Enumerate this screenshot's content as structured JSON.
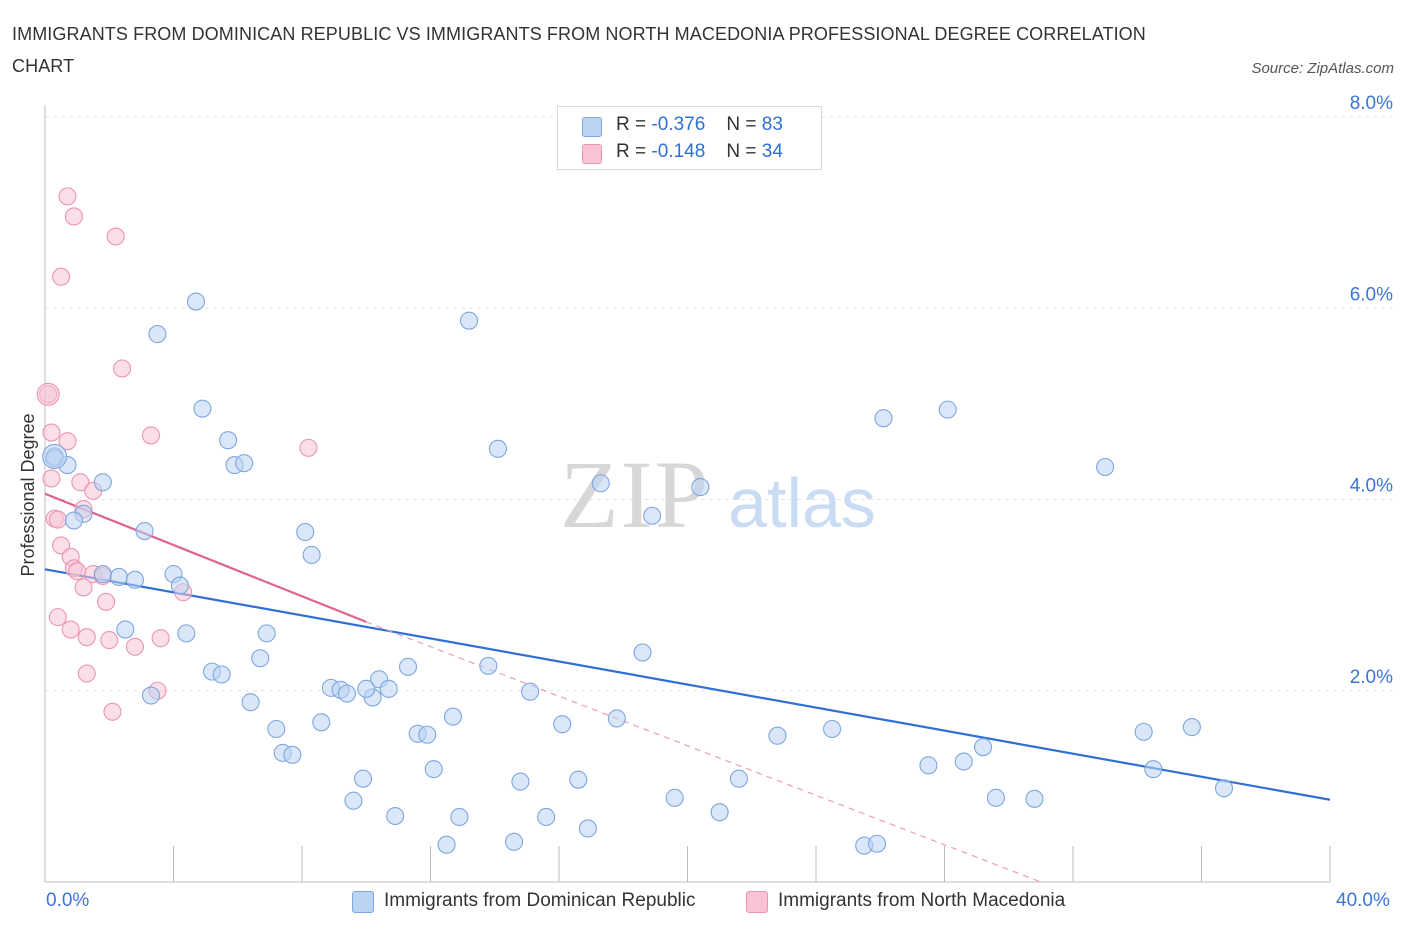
{
  "title": "IMMIGRANTS FROM DOMINICAN REPUBLIC VS IMMIGRANTS FROM NORTH MACEDONIA PROFESSIONAL DEGREE CORRELATION CHART",
  "source": "Source: ZipAtlas.com",
  "watermark": {
    "zip": "ZIP",
    "atlas": "atlas"
  },
  "legend": {
    "r_label": "R =",
    "n_label": "N =",
    "entries": [
      {
        "r": "-0.376",
        "n": "83",
        "color": "#a9c8f2"
      },
      {
        "r": "-0.148",
        "n": "34",
        "color": "#f6b8cb"
      }
    ]
  },
  "x_axis": {
    "left_label": "0.0%",
    "right_label": "40.0%"
  },
  "colors": {
    "blue": "#5b8fd9",
    "blue_fill": "#bcd4f3",
    "pink": "#e7729b",
    "pink_fill": "#f8c4d4",
    "blue_line": "#2f6fd6",
    "pink_line": "#e0608e",
    "tick_text": "#3a76d6"
  },
  "chart_data": {
    "type": "scatter",
    "title": "IMMIGRANTS FROM DOMINICAN REPUBLIC VS IMMIGRANTS FROM NORTH MACEDONIA PROFESSIONAL DEGREE CORRELATION CHART",
    "xlabel": "",
    "ylabel": "Professional Degree",
    "xlim": [
      0,
      40
    ],
    "ylim": [
      0,
      8
    ],
    "y_ticks": [
      {
        "value": 2,
        "label": "2.0%"
      },
      {
        "value": 4,
        "label": "4.0%"
      },
      {
        "value": 6,
        "label": "6.0%"
      },
      {
        "value": 8,
        "label": "8.0%"
      }
    ],
    "grid": true,
    "legend_position": "top-center",
    "series": [
      {
        "name": "Immigrants from Dominican Republic",
        "color": "#5b8fd9",
        "trend": {
          "x0": 0,
          "y0": 3.27,
          "x1": 40,
          "y1": 0.86
        },
        "points": [
          [
            0.3,
            4.45
          ],
          [
            0.3,
            4.43
          ],
          [
            0.7,
            4.36
          ],
          [
            1.8,
            4.18
          ],
          [
            1.2,
            3.85
          ],
          [
            0.9,
            3.78
          ],
          [
            1.8,
            3.22
          ],
          [
            2.3,
            3.19
          ],
          [
            2.8,
            3.16
          ],
          [
            3.1,
            3.67
          ],
          [
            4.0,
            3.22
          ],
          [
            4.2,
            3.1
          ],
          [
            2.5,
            2.64
          ],
          [
            4.4,
            2.6
          ],
          [
            3.3,
            1.95
          ],
          [
            3.5,
            5.73
          ],
          [
            4.7,
            6.07
          ],
          [
            4.9,
            4.95
          ],
          [
            5.7,
            4.62
          ],
          [
            5.9,
            4.36
          ],
          [
            6.2,
            4.38
          ],
          [
            5.2,
            2.2
          ],
          [
            5.5,
            2.17
          ],
          [
            6.4,
            1.88
          ],
          [
            6.7,
            2.34
          ],
          [
            6.9,
            2.6
          ],
          [
            7.2,
            1.6
          ],
          [
            7.4,
            1.35
          ],
          [
            7.7,
            1.33
          ],
          [
            8.1,
            3.66
          ],
          [
            8.3,
            3.42
          ],
          [
            8.6,
            1.67
          ],
          [
            8.9,
            2.03
          ],
          [
            9.2,
            2.01
          ],
          [
            9.6,
            0.85
          ],
          [
            9.9,
            1.08
          ],
          [
            10.2,
            1.93
          ],
          [
            10.4,
            2.12
          ],
          [
            10.7,
            2.02
          ],
          [
            10.9,
            0.69
          ],
          [
            11.3,
            2.25
          ],
          [
            11.6,
            1.55
          ],
          [
            11.9,
            1.54
          ],
          [
            12.1,
            1.18
          ],
          [
            12.5,
            0.39
          ],
          [
            12.7,
            1.73
          ],
          [
            12.9,
            0.68
          ],
          [
            13.2,
            5.87
          ],
          [
            13.8,
            2.26
          ],
          [
            14.1,
            4.53
          ],
          [
            14.6,
            0.42
          ],
          [
            14.8,
            1.05
          ],
          [
            15.1,
            1.99
          ],
          [
            15.6,
            0.68
          ],
          [
            16.1,
            1.65
          ],
          [
            16.6,
            1.07
          ],
          [
            16.9,
            0.56
          ],
          [
            17.3,
            4.17
          ],
          [
            17.8,
            1.71
          ],
          [
            18.6,
            2.4
          ],
          [
            18.9,
            3.83
          ],
          [
            19.6,
            0.88
          ],
          [
            20.4,
            4.13
          ],
          [
            21.0,
            0.73
          ],
          [
            21.6,
            1.08
          ],
          [
            22.8,
            1.53
          ],
          [
            24.5,
            1.6
          ],
          [
            25.5,
            0.38
          ],
          [
            25.9,
            0.4
          ],
          [
            26.1,
            4.85
          ],
          [
            27.5,
            1.22
          ],
          [
            28.1,
            4.94
          ],
          [
            28.6,
            1.26
          ],
          [
            29.2,
            1.41
          ],
          [
            29.6,
            0.88
          ],
          [
            30.8,
            0.87
          ],
          [
            33.0,
            4.34
          ],
          [
            34.2,
            1.57
          ],
          [
            34.5,
            1.18
          ],
          [
            35.7,
            1.62
          ],
          [
            36.7,
            0.98
          ],
          [
            10.0,
            2.02
          ],
          [
            9.4,
            1.97
          ]
        ]
      },
      {
        "name": "Immigrants from North Macedonia",
        "color": "#e7729b",
        "trend": {
          "x0": 0,
          "y0": 4.06,
          "x1": 10,
          "y1": 2.72,
          "dash_x1": 31,
          "dash_y1": 0
        },
        "points": [
          [
            0.1,
            5.1
          ],
          [
            0.2,
            4.7
          ],
          [
            0.2,
            4.22
          ],
          [
            0.3,
            3.8
          ],
          [
            0.4,
            3.79
          ],
          [
            0.4,
            2.77
          ],
          [
            0.5,
            6.33
          ],
          [
            0.5,
            3.52
          ],
          [
            0.7,
            7.17
          ],
          [
            0.7,
            4.61
          ],
          [
            0.8,
            3.4
          ],
          [
            0.8,
            2.64
          ],
          [
            0.9,
            6.96
          ],
          [
            0.9,
            3.28
          ],
          [
            1.0,
            3.25
          ],
          [
            1.1,
            4.18
          ],
          [
            1.2,
            3.9
          ],
          [
            1.2,
            3.08
          ],
          [
            1.3,
            2.56
          ],
          [
            1.3,
            2.18
          ],
          [
            1.5,
            4.09
          ],
          [
            1.5,
            3.22
          ],
          [
            1.8,
            3.2
          ],
          [
            1.9,
            2.93
          ],
          [
            2.0,
            2.53
          ],
          [
            2.1,
            1.78
          ],
          [
            2.2,
            6.75
          ],
          [
            2.4,
            5.37
          ],
          [
            2.8,
            2.46
          ],
          [
            3.3,
            4.67
          ],
          [
            3.5,
            2.0
          ],
          [
            3.6,
            2.55
          ],
          [
            4.3,
            3.03
          ],
          [
            8.2,
            4.54
          ]
        ]
      }
    ]
  }
}
